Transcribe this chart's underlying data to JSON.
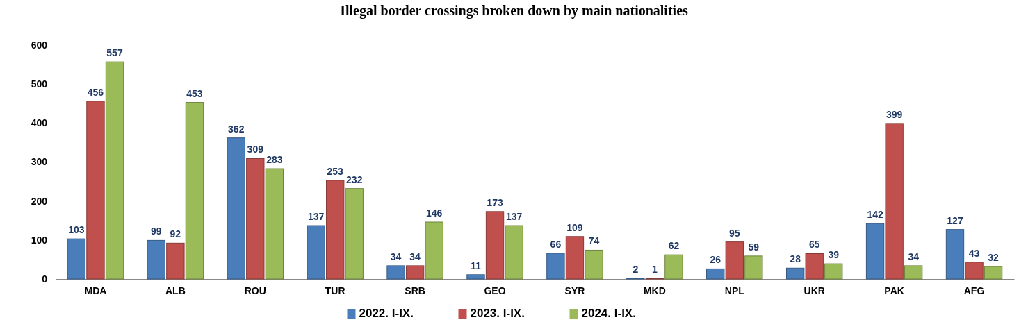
{
  "chart_data": {
    "type": "bar",
    "title": "Illegal border crossings broken down by main nationalities",
    "categories": [
      "MDA",
      "ALB",
      "ROU",
      "TUR",
      "SRB",
      "GEO",
      "SYR",
      "MKD",
      "NPL",
      "UKR",
      "PAK",
      "AFG"
    ],
    "series": [
      {
        "name": "2022. I-IX.",
        "color": "#4a7ebb",
        "values": [
          103,
          99,
          362,
          137,
          34,
          11,
          66,
          2,
          26,
          28,
          142,
          127
        ]
      },
      {
        "name": "2023. I-IX.",
        "color": "#c0504d",
        "values": [
          456,
          92,
          309,
          253,
          34,
          173,
          109,
          1,
          95,
          65,
          399,
          43
        ]
      },
      {
        "name": "2024. I-IX.",
        "color": "#9bbb59",
        "values": [
          557,
          453,
          283,
          232,
          146,
          137,
          74,
          62,
          59,
          39,
          34,
          32
        ]
      }
    ],
    "ylim": [
      0,
      600
    ],
    "yticks": [
      0,
      100,
      200,
      300,
      400,
      500,
      600
    ],
    "grid": false,
    "legend": "bottom",
    "data_labels": true
  }
}
